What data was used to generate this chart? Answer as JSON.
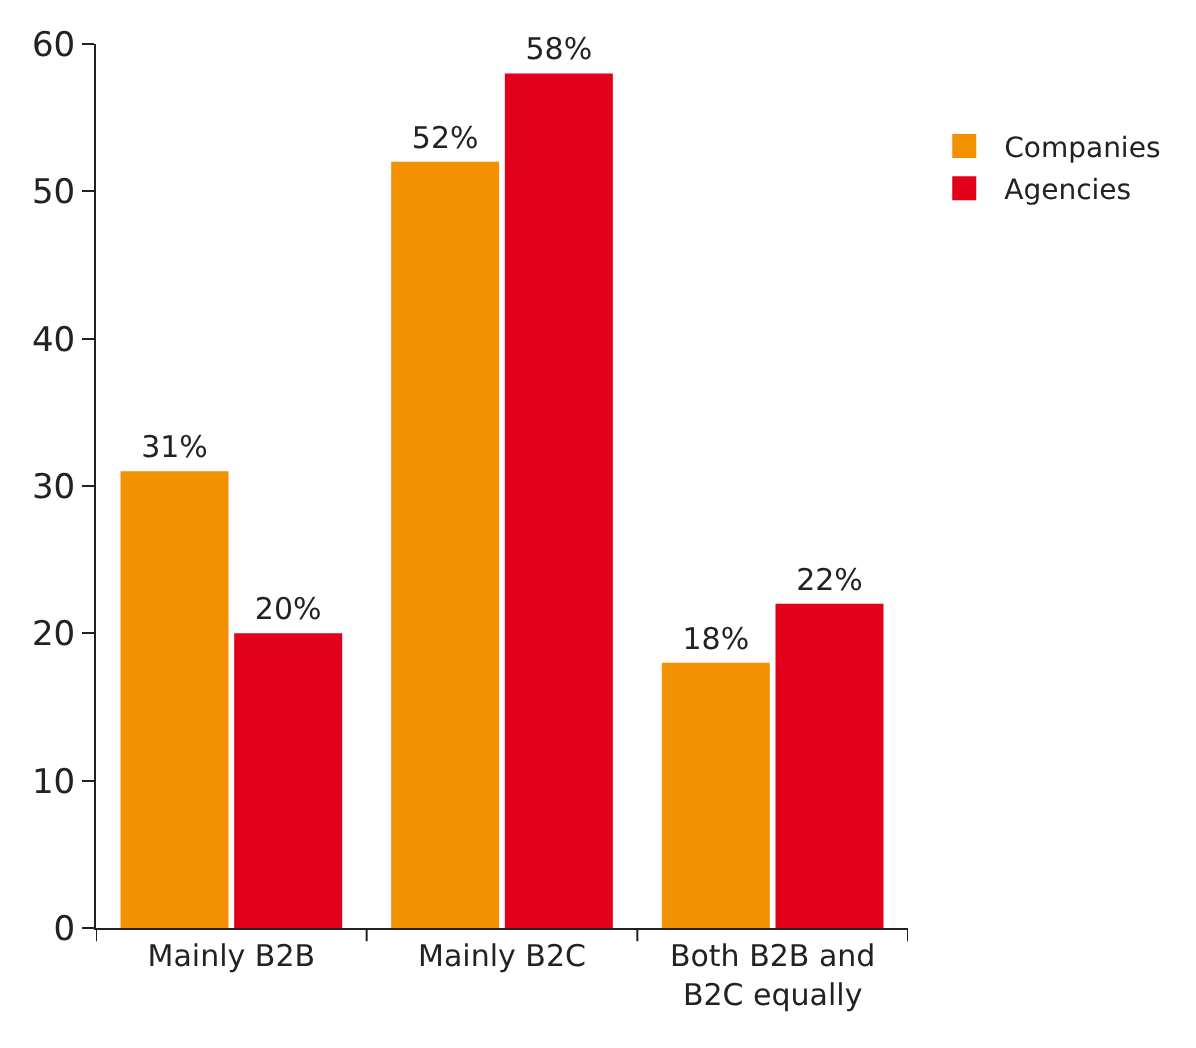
{
  "chart_data": {
    "type": "bar",
    "categories": [
      "Mainly B2B",
      "Mainly B2C",
      "Both B2B and B2C equally"
    ],
    "series": [
      {
        "name": "Companies",
        "color": "#f39200",
        "values": [
          31,
          52,
          18
        ],
        "value_labels": [
          "31%",
          "52%",
          "18%"
        ]
      },
      {
        "name": "Agencies",
        "color": "#e2001a",
        "values": [
          20,
          58,
          22
        ],
        "value_labels": [
          "20%",
          "58%",
          "22%"
        ]
      }
    ],
    "ylim": [
      0,
      60
    ],
    "yticks": [
      0,
      10,
      20,
      30,
      40,
      50,
      60
    ],
    "legend": "top right"
  }
}
